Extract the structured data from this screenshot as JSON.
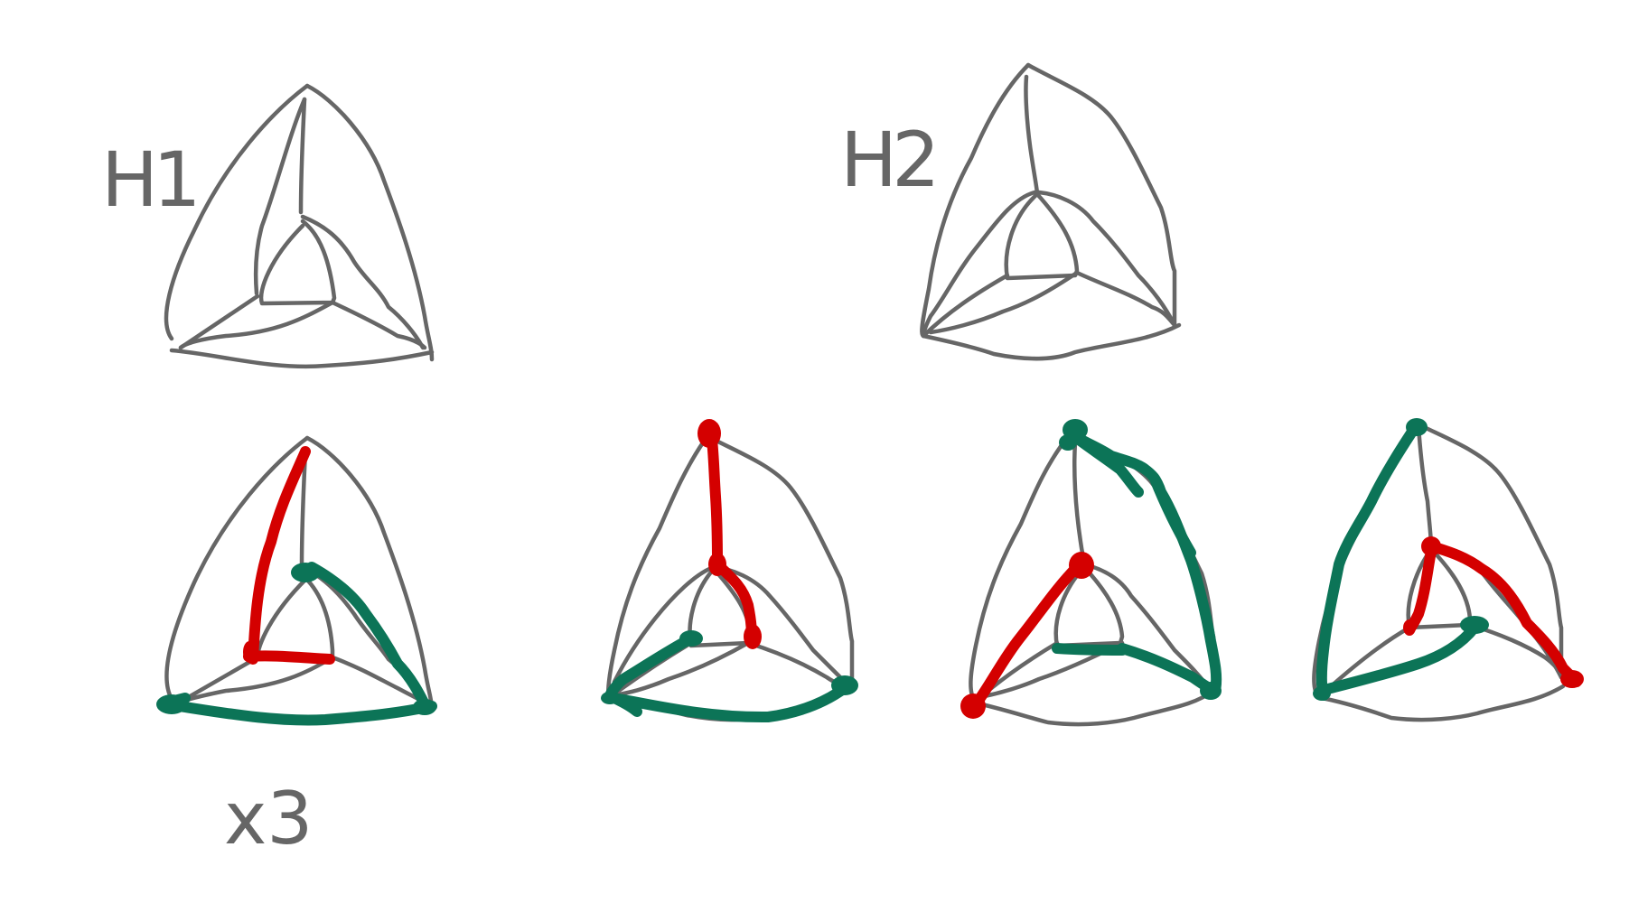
{
  "labels": {
    "h1": "H1",
    "h2": "H2",
    "multiplicity": "x3"
  },
  "colors": {
    "background": "#ffffff",
    "outline": "#666666",
    "green": "#0c7457",
    "red": "#d40000"
  }
}
